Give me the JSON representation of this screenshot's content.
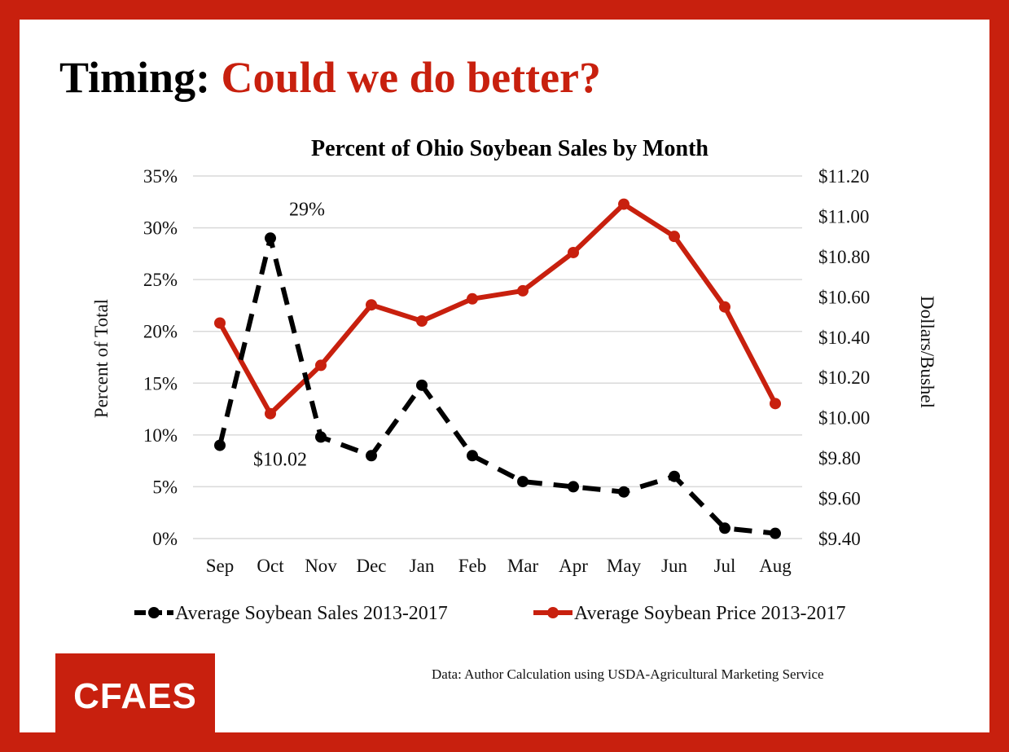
{
  "slide": {
    "headline_lead": "Timing: ",
    "headline_accent": "Could we do better?",
    "source": "Data: Author Calculation using USDA-Agricultural Marketing Service",
    "logo": "CFAES"
  },
  "colors": {
    "accent": "#c8200e",
    "sales_line": "#000000",
    "price_line": "#c8200e",
    "grid": "#d9d9d9"
  },
  "chart_data": {
    "type": "line",
    "title": "Percent of Ohio Soybean Sales by Month",
    "categories": [
      "Sep",
      "Oct",
      "Nov",
      "Dec",
      "Jan",
      "Feb",
      "Mar",
      "Apr",
      "May",
      "Jun",
      "Jul",
      "Aug"
    ],
    "ylabel": "Percent of Total",
    "ylim": [
      0,
      35
    ],
    "yticks": [
      "0%",
      "5%",
      "10%",
      "15%",
      "20%",
      "25%",
      "30%",
      "35%"
    ],
    "y2label": "Dollars/Bushel",
    "y2lim": [
      9.4,
      11.2
    ],
    "y2ticks": [
      "$9.40",
      "$9.60",
      "$9.80",
      "$10.00",
      "$10.20",
      "$10.40",
      "$10.60",
      "$10.80",
      "$11.00",
      "$11.20"
    ],
    "grid": true,
    "legend_position": "bottom",
    "series": [
      {
        "name": "Average Soybean Sales 2013-2017",
        "axis": "left",
        "style": "dashed",
        "values": [
          9.0,
          29.0,
          9.8,
          8.0,
          14.8,
          8.0,
          5.5,
          5.0,
          4.5,
          6.0,
          1.0,
          0.5
        ]
      },
      {
        "name": "Average Soybean Price 2013-2017",
        "axis": "right",
        "style": "solid",
        "values": [
          10.47,
          10.02,
          10.26,
          10.56,
          10.48,
          10.59,
          10.63,
          10.82,
          11.06,
          10.9,
          10.55,
          10.07
        ]
      }
    ],
    "annotations": [
      {
        "text": "29%",
        "series": 0,
        "index": 1,
        "position": "above"
      },
      {
        "text": "$10.02",
        "series": 1,
        "index": 1,
        "position": "below"
      }
    ]
  }
}
